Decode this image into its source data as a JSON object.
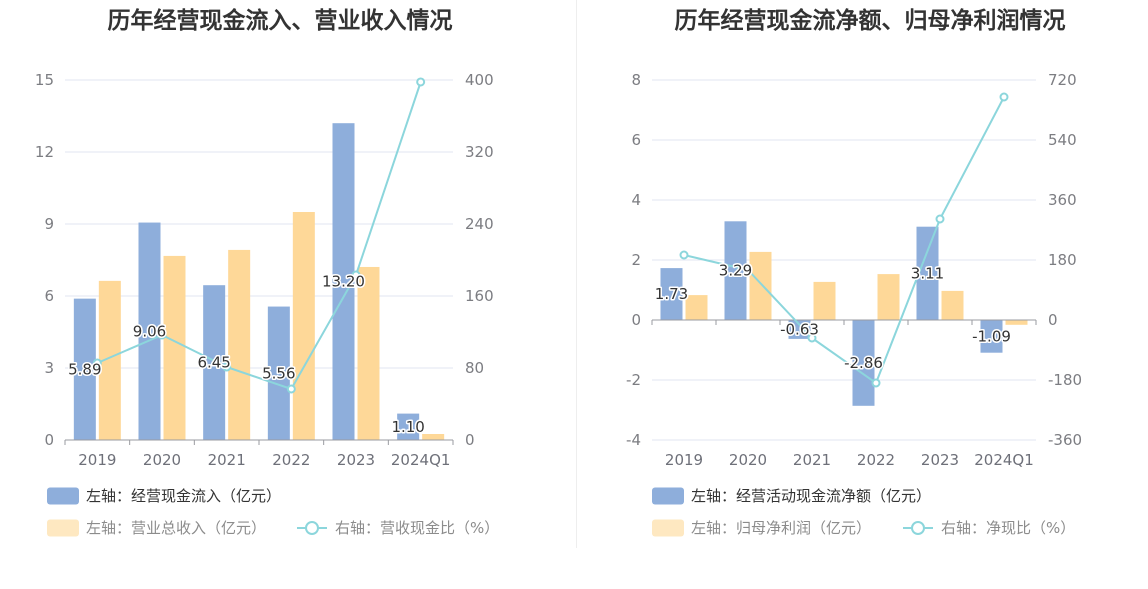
{
  "chart_data": [
    {
      "type": "bar",
      "title": "历年经营现金流入、营业收入情况",
      "categories": [
        "2019",
        "2020",
        "2021",
        "2022",
        "2023",
        "2024Q1"
      ],
      "left_axis": {
        "ticks": [
          0,
          3,
          6,
          9,
          12,
          15
        ],
        "range": [
          0,
          15
        ]
      },
      "right_axis": {
        "ticks": [
          0,
          80,
          160,
          240,
          320,
          400
        ],
        "range": [
          0,
          400
        ]
      },
      "series": [
        {
          "name": "左轴：经营现金流入（亿元）",
          "type": "bar",
          "color": "#8eaedb",
          "values": [
            5.89,
            9.06,
            6.45,
            5.56,
            13.2,
            1.1
          ],
          "labels": [
            "5.89",
            "9.06",
            "6.45",
            "5.56",
            "13.20",
            "1.10"
          ]
        },
        {
          "name": "左轴：营业总收入（亿元）",
          "type": "bar",
          "color": "#fed898",
          "values": [
            6.63,
            7.67,
            7.92,
            9.5,
            7.21,
            0.25
          ]
        },
        {
          "name": "右轴：营收现金比（%）",
          "type": "line",
          "color": "#8cd6dc",
          "values": [
            85.6,
            116.7,
            81.1,
            56.7,
            183.3,
            397.8
          ]
        }
      ],
      "grid": true,
      "legend_position": "bottom-left"
    },
    {
      "type": "bar",
      "title": "历年经营现金流净额、归母净利润情况",
      "categories": [
        "2019",
        "2020",
        "2021",
        "2022",
        "2023",
        "2024Q1"
      ],
      "left_axis": {
        "ticks": [
          -4,
          -2,
          0,
          2,
          4,
          6,
          8
        ],
        "range": [
          -4,
          8
        ]
      },
      "right_axis": {
        "ticks": [
          -360,
          -180,
          0,
          180,
          360,
          540,
          720
        ],
        "range": [
          -360,
          720
        ]
      },
      "series": [
        {
          "name": "左轴：经营活动现金流净额（亿元）",
          "type": "bar",
          "color": "#8eaedb",
          "values": [
            1.73,
            3.29,
            -0.63,
            -2.86,
            3.11,
            -1.09
          ],
          "labels": [
            "1.73",
            "3.29",
            "-0.63",
            "-2.86",
            "3.11",
            "-1.09"
          ]
        },
        {
          "name": "左轴：归母净利润（亿元）",
          "type": "bar",
          "color": "#fed898",
          "values": [
            0.83,
            2.27,
            1.27,
            1.53,
            0.97,
            -0.16
          ]
        },
        {
          "name": "右轴：净现比（%）",
          "type": "line",
          "color": "#8cd6dc",
          "values": [
            195,
            150,
            -54,
            -189,
            303,
            669
          ]
        }
      ],
      "grid": true,
      "legend_position": "bottom-left"
    }
  ]
}
